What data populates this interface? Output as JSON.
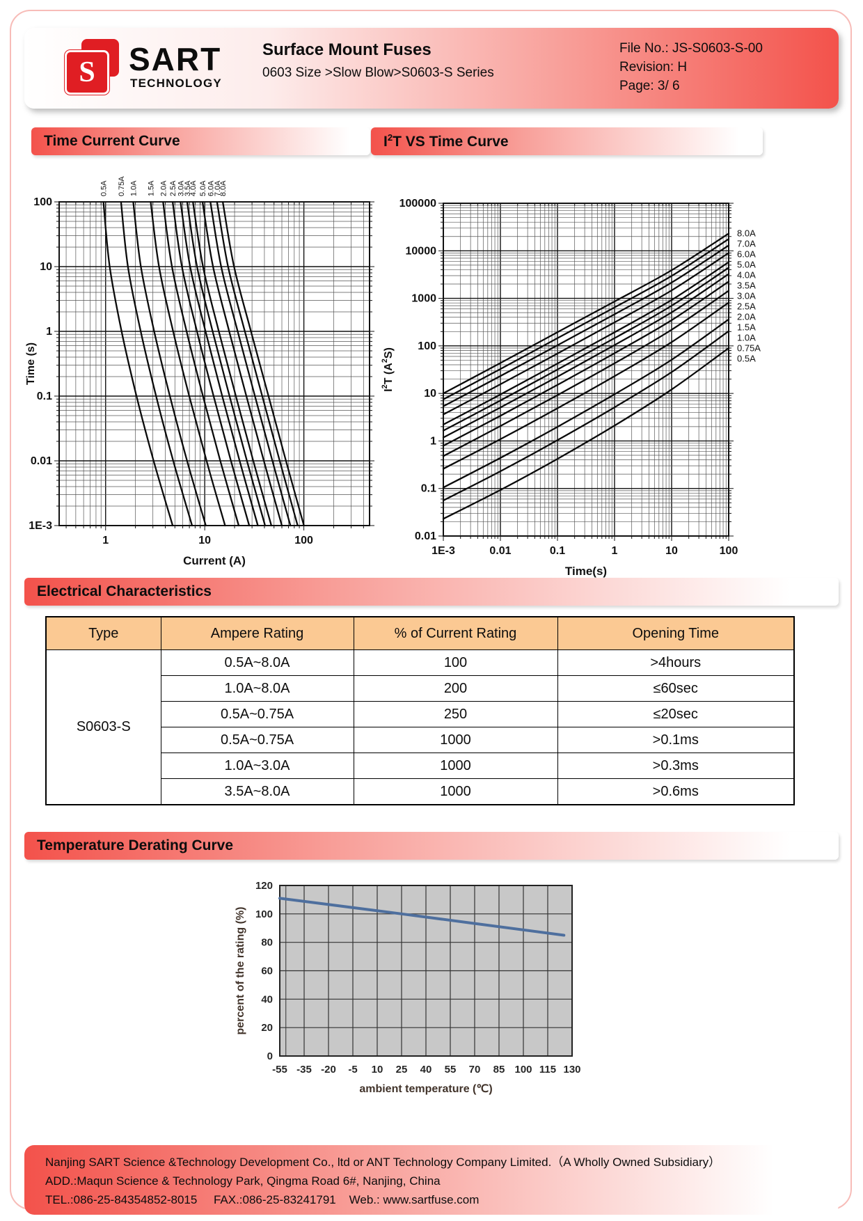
{
  "header": {
    "logo": {
      "glyph": "S",
      "brand": "SART",
      "sub": "TECHNOLOGY"
    },
    "title": "Surface Mount Fuses",
    "subtitle": "0603 Size >Slow Blow>S0603-S Series",
    "file_no": "File No.: JS-S0603-S-00",
    "revision": "Revision: H",
    "page": "Page: 3/ 6"
  },
  "sections": {
    "time_current": "Time Current Curve",
    "i2t_pre": "I",
    "i2t_sup": "2",
    "i2t_rest": "T VS Time Curve",
    "electrical": "Electrical Characteristics",
    "derating": "Temperature Derating Curve"
  },
  "chart_data": [
    {
      "id": "time-current",
      "type": "line",
      "title": "Time Current Curve",
      "xlabel": "Current (A)",
      "ylabel": "Time (s)",
      "xscale": "log",
      "yscale": "log",
      "xlim": [
        0.34,
        460
      ],
      "ylim": [
        0.001,
        100
      ],
      "grid": true,
      "legend_position": "top-rotated",
      "xticks": [
        {
          "v": 1,
          "label": "1"
        },
        {
          "v": 10,
          "label": "10"
        },
        {
          "v": 100,
          "label": "100"
        }
      ],
      "yticks": [
        {
          "v": 100,
          "label": "100"
        },
        {
          "v": 10,
          "label": "10"
        },
        {
          "v": 1,
          "label": "1"
        },
        {
          "v": 0.1,
          "label": "0.1"
        },
        {
          "v": 0.01,
          "label": "0.01"
        },
        {
          "v": 0.001,
          "label": "1E-3"
        }
      ],
      "t_samples": [
        100,
        10,
        1,
        0.1,
        0.01,
        0.001
      ],
      "series": [
        {
          "name": "0.5A",
          "current": [
            0.95,
            1.1,
            1.45,
            2.05,
            3.05,
            4.75
          ]
        },
        {
          "name": "0.75A",
          "current": [
            1.43,
            1.68,
            2.26,
            3.23,
            4.81,
            7.46
          ]
        },
        {
          "name": "1.0A",
          "current": [
            1.9,
            2.27,
            3.09,
            4.45,
            6.64,
            10.25
          ]
        },
        {
          "name": "1.5A",
          "current": [
            2.85,
            3.46,
            4.8,
            6.98,
            10.43,
            16.04
          ]
        },
        {
          "name": "2.0A",
          "current": [
            3.8,
            4.67,
            6.56,
            9.6,
            14.35,
            22.01
          ]
        },
        {
          "name": "2.5A",
          "current": [
            4.75,
            5.89,
            8.35,
            12.28,
            18.38,
            28.12
          ]
        },
        {
          "name": "3.0A",
          "current": [
            5.7,
            7.12,
            10.18,
            15.01,
            22.48,
            34.34
          ]
        },
        {
          "name": "3.5A",
          "current": [
            6.65,
            8.36,
            12.02,
            17.79,
            26.64,
            40.64
          ]
        },
        {
          "name": "4.0A",
          "current": [
            7.6,
            9.61,
            13.88,
            20.6,
            30.86,
            47.03
          ]
        },
        {
          "name": "5.0A",
          "current": [
            9.5,
            12.12,
            17.66,
            26.31,
            39.45,
            60.0
          ]
        },
        {
          "name": "6.0A",
          "current": [
            11.4,
            14.65,
            21.49,
            32.12,
            48.18,
            73.19
          ]
        },
        {
          "name": "7.0A",
          "current": [
            13.3,
            17.2,
            25.37,
            38.02,
            57.05,
            86.56
          ]
        },
        {
          "name": "8.0A",
          "current": [
            15.2,
            19.76,
            29.29,
            43.99,
            66.03,
            100.08
          ]
        }
      ]
    },
    {
      "id": "i2t-time",
      "type": "line",
      "title": "I2T VS Time Curve",
      "xlabel": "Time(s)",
      "ylabel_parts": {
        "pre": "I",
        "sup1": "2",
        "mid": "T (A",
        "sup2": "2",
        "post": "S)"
      },
      "xscale": "log",
      "yscale": "log",
      "xlim": [
        0.001,
        100
      ],
      "ylim": [
        0.01,
        100000
      ],
      "grid": true,
      "legend_position": "right",
      "xticks": [
        {
          "v": 0.001,
          "label": "1E-3"
        },
        {
          "v": 0.01,
          "label": "0.01"
        },
        {
          "v": 0.1,
          "label": "0.1"
        },
        {
          "v": 1,
          "label": "1"
        },
        {
          "v": 10,
          "label": "10"
        },
        {
          "v": 100,
          "label": "100"
        }
      ],
      "yticks": [
        {
          "v": 100000,
          "label": "100000"
        },
        {
          "v": 10000,
          "label": "10000"
        },
        {
          "v": 1000,
          "label": "1000"
        },
        {
          "v": 100,
          "label": "100"
        },
        {
          "v": 10,
          "label": "10"
        },
        {
          "v": 1,
          "label": "1"
        },
        {
          "v": 0.1,
          "label": "0.1"
        },
        {
          "v": 0.01,
          "label": "0.01"
        }
      ],
      "t_samples": [
        0.001,
        0.01,
        0.1,
        1,
        10,
        100
      ],
      "series": [
        {
          "name": "8.0A",
          "i2t": [
            10.0,
            43.6,
            194,
            858,
            3904,
            23104
          ]
        },
        {
          "name": "7.0A",
          "i2t": [
            7.49,
            32.6,
            145,
            644,
            2958,
            17689
          ]
        },
        {
          "name": "6.0A",
          "i2t": [
            5.36,
            23.2,
            103,
            462,
            2146,
            12996
          ]
        },
        {
          "name": "5.0A",
          "i2t": [
            3.6,
            15.6,
            69,
            312,
            1469,
            9025
          ]
        },
        {
          "name": "4.0A",
          "i2t": [
            2.21,
            9.5,
            42.4,
            193,
            924,
            5776
          ]
        },
        {
          "name": "3.5A",
          "i2t": [
            1.65,
            7.1,
            31.7,
            145,
            699,
            4422
          ]
        },
        {
          "name": "3.0A",
          "i2t": [
            1.18,
            5.05,
            22.5,
            104,
            507,
            3249
          ]
        },
        {
          "name": "2.5A",
          "i2t": [
            0.79,
            3.38,
            15.1,
            70,
            347,
            2256
          ]
        },
        {
          "name": "2.0A",
          "i2t": [
            0.48,
            2.06,
            9.2,
            43,
            218,
            1444
          ]
        },
        {
          "name": "1.5A",
          "i2t": [
            0.26,
            1.09,
            4.87,
            23,
            120,
            812
          ]
        },
        {
          "name": "1.0A",
          "i2t": [
            0.105,
            0.44,
            1.98,
            9.6,
            51,
            361
          ]
        },
        {
          "name": "0.75A",
          "i2t": [
            0.056,
            0.23,
            1.04,
            5.1,
            28,
            204
          ]
        },
        {
          "name": "0.5A",
          "i2t": [
            0.023,
            0.093,
            0.42,
            2.1,
            12.1,
            90
          ]
        }
      ]
    },
    {
      "id": "derating",
      "type": "line",
      "title": "Temperature Derating Curve",
      "xlabel": "ambient temperature (℃)",
      "ylabel": "percent of the rating (%)",
      "xscale": "linear",
      "yscale": "linear",
      "grid": true,
      "plot_bg": "#c8c8c8",
      "line_color": "#4e6f9e",
      "xticks": [
        -55,
        -35,
        -20,
        -5,
        10,
        25,
        40,
        55,
        70,
        85,
        100,
        115,
        130
      ],
      "yticks": [
        0,
        20,
        40,
        60,
        80,
        100,
        120
      ],
      "ylim": [
        0,
        120
      ],
      "points": [
        [
          -55,
          111
        ],
        [
          25,
          100
        ],
        [
          125,
          85
        ]
      ]
    }
  ],
  "table": {
    "headers": [
      "Type",
      "Ampere Rating",
      "% of Current Rating",
      "Opening Time"
    ],
    "type_label": "S0603-S",
    "rows": [
      [
        "0.5A~8.0A",
        "100",
        ">4hours"
      ],
      [
        "1.0A~8.0A",
        "200",
        "≤60sec"
      ],
      [
        "0.5A~0.75A",
        "250",
        "≤20sec"
      ],
      [
        "0.5A~0.75A",
        "1000",
        ">0.1ms"
      ],
      [
        "1.0A~3.0A",
        "1000",
        ">0.3ms"
      ],
      [
        "3.5A~8.0A",
        "1000",
        ">0.6ms"
      ]
    ]
  },
  "footer": {
    "line1": "Nanjing SART Science &Technology Development Co., ltd or ANT Technology Company Limited.（A Wholly Owned Subsidiary）",
    "line2": "ADD.:Maqun Science & Technology Park, Qingma Road 6#, Nanjing, China",
    "line3": "TEL.:086-25-84354852-8015     FAX.:086-25-83241791    Web.: www.sartfuse.com"
  }
}
